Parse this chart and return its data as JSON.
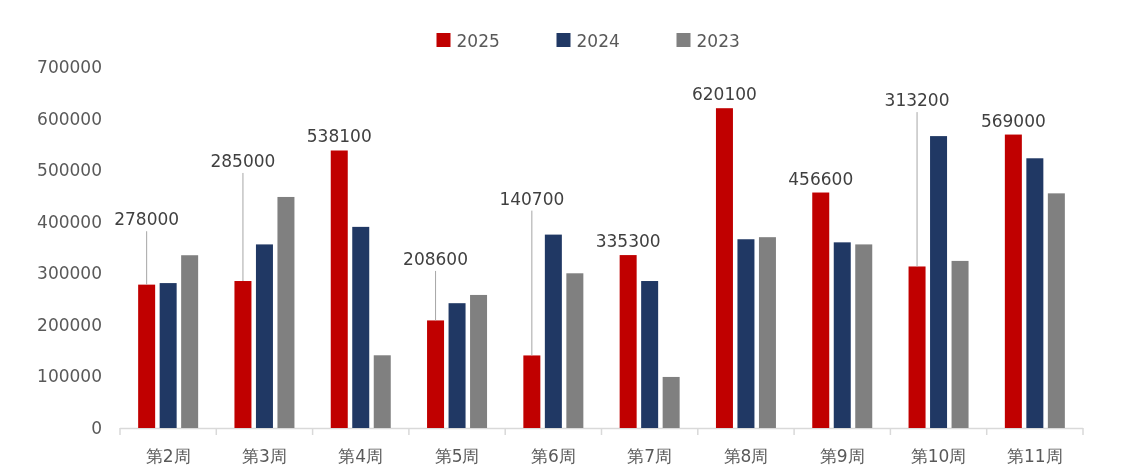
{
  "chart_data": {
    "type": "bar",
    "categories": [
      "第2周",
      "第3周",
      "第4周",
      "第5周",
      "第6周",
      "第7周",
      "第8周",
      "第9周",
      "第10周",
      "第11周"
    ],
    "series": [
      {
        "name": "2025",
        "color": "#c00000",
        "values": [
          278000,
          285000,
          538100,
          208600,
          140700,
          335300,
          620100,
          456600,
          313200,
          569000
        ],
        "value_labels": [
          "278000",
          "285000",
          "538100",
          "208600",
          "140700",
          "335300",
          "620100",
          "456600",
          "313200",
          "569000"
        ]
      },
      {
        "name": "2024",
        "color": "#203864",
        "values": [
          281000,
          356000,
          390000,
          242000,
          375000,
          285000,
          366000,
          360000,
          566000,
          523000
        ]
      },
      {
        "name": "2023",
        "color": "#808080",
        "values": [
          335000,
          448000,
          141000,
          258000,
          300000,
          99000,
          370000,
          356000,
          324000,
          455000
        ]
      }
    ],
    "ylim": [
      0,
      700000
    ],
    "yticks": [
      0,
      100000,
      200000,
      300000,
      400000,
      500000,
      600000,
      700000
    ],
    "grid": false,
    "legend": "top"
  }
}
